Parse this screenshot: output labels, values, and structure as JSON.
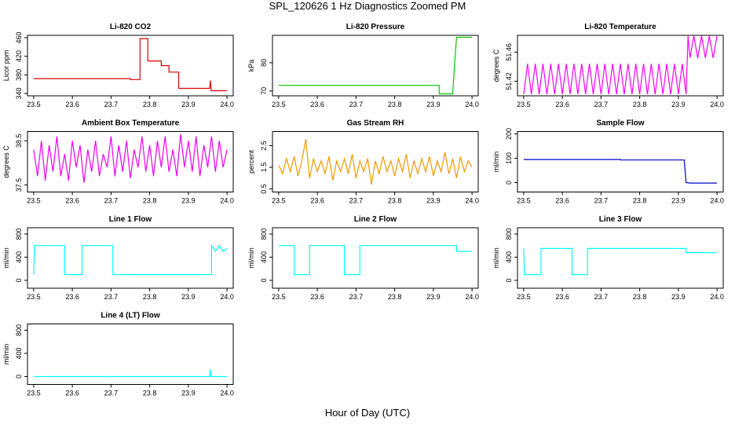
{
  "title": "SPL_120626  1 Hz Diagnostics Zoomed PM",
  "xlabel": "Hour of Day (UTC)",
  "chart_data": [
    {
      "type": "line",
      "title": "Li-820 CO2",
      "ylabel": "Licor ppm",
      "color": "#dd0000",
      "x": [
        23.5,
        23.75,
        23.75,
        23.775,
        23.775,
        23.795,
        23.795,
        23.83,
        23.83,
        23.85,
        23.85,
        23.875,
        23.875,
        23.955,
        23.957,
        23.959,
        23.96,
        24.0
      ],
      "values": [
        372,
        372,
        370,
        370,
        458,
        458,
        410,
        410,
        400,
        400,
        386,
        386,
        351,
        351,
        368,
        346,
        346,
        346
      ],
      "xlim": [
        23.484,
        24.016
      ],
      "ylim": [
        335,
        465
      ],
      "xticks": [
        23.5,
        23.6,
        23.7,
        23.8,
        23.9,
        {
          "value": 24,
          "label": "24.0"
        }
      ],
      "yticks": [
        340,
        380,
        420,
        460
      ]
    },
    {
      "type": "line",
      "title": "Li-820 Pressure",
      "ylabel": "kPa",
      "color": "#00cc00",
      "x": [
        23.5,
        23.915,
        23.915,
        23.95,
        23.955,
        23.96,
        24.0
      ],
      "values": [
        72,
        72,
        69,
        69,
        80,
        89,
        89
      ],
      "xlim": [
        23.484,
        24.016
      ],
      "ylim": [
        68.3,
        89.7
      ],
      "xticks": [
        23.5,
        23.6,
        23.7,
        23.8,
        23.9,
        {
          "value": 24,
          "label": "24.0"
        }
      ],
      "yticks": [
        70,
        80
      ]
    },
    {
      "type": "line",
      "title": "Li-820 Temperature",
      "ylabel": "degrees C",
      "color": "#ff00ff",
      "x": [
        23.5,
        23.51,
        23.52,
        23.53,
        23.54,
        23.55,
        23.56,
        23.57,
        23.58,
        23.59,
        23.6,
        23.61,
        23.62,
        23.63,
        23.64,
        23.65,
        23.66,
        23.67,
        23.68,
        23.69,
        23.7,
        23.71,
        23.72,
        23.73,
        23.74,
        23.75,
        23.76,
        23.77,
        23.78,
        23.79,
        23.8,
        23.81,
        23.82,
        23.83,
        23.84,
        23.85,
        23.86,
        23.87,
        23.88,
        23.89,
        23.9,
        23.91,
        23.92,
        23.925,
        23.93,
        23.94,
        23.95,
        23.96,
        23.97,
        23.98,
        23.99,
        24.0
      ],
      "values": [
        51.402,
        51.444,
        51.402,
        51.444,
        51.402,
        51.444,
        51.402,
        51.444,
        51.402,
        51.444,
        51.402,
        51.444,
        51.402,
        51.444,
        51.402,
        51.444,
        51.402,
        51.444,
        51.402,
        51.444,
        51.402,
        51.444,
        51.402,
        51.444,
        51.402,
        51.444,
        51.402,
        51.444,
        51.402,
        51.444,
        51.402,
        51.444,
        51.402,
        51.444,
        51.402,
        51.444,
        51.402,
        51.444,
        51.402,
        51.444,
        51.402,
        51.444,
        51.402,
        51.482,
        51.452,
        51.482,
        51.452,
        51.482,
        51.452,
        51.482,
        51.452,
        51.482
      ],
      "xlim": [
        23.484,
        24.016
      ],
      "ylim": [
        51.4,
        51.483
      ],
      "xticks": [
        23.5,
        23.6,
        23.7,
        23.8,
        23.9,
        {
          "value": 24,
          "label": "24.0"
        }
      ],
      "yticks": [
        51.42,
        51.46
      ]
    },
    {
      "type": "line",
      "title": "Ambient Box Temperature",
      "ylabel": "degrees C",
      "color": "#ee00ee",
      "x": [
        23.5,
        23.51,
        23.52,
        23.53,
        23.54,
        23.55,
        23.56,
        23.57,
        23.58,
        23.59,
        23.6,
        23.61,
        23.62,
        23.63,
        23.64,
        23.65,
        23.66,
        23.67,
        23.68,
        23.69,
        23.7,
        23.71,
        23.72,
        23.73,
        23.74,
        23.75,
        23.76,
        23.77,
        23.78,
        23.79,
        23.8,
        23.81,
        23.82,
        23.83,
        23.84,
        23.85,
        23.86,
        23.87,
        23.88,
        23.89,
        23.9,
        23.91,
        23.92,
        23.93,
        23.94,
        23.95,
        23.96,
        23.97,
        23.98,
        23.99,
        24.0
      ],
      "values": [
        38.3,
        37.7,
        38.5,
        37.6,
        38.4,
        37.8,
        38.6,
        37.7,
        38.2,
        37.6,
        38.5,
        37.9,
        38.4,
        37.55,
        38.3,
        37.8,
        38.5,
        37.7,
        38.2,
        37.9,
        38.6,
        37.7,
        38.4,
        37.8,
        38.5,
        37.65,
        38.3,
        37.9,
        38.6,
        37.8,
        38.4,
        37.7,
        38.5,
        37.9,
        38.6,
        37.8,
        38.3,
        37.7,
        38.65,
        37.9,
        38.5,
        37.8,
        38.6,
        37.7,
        38.4,
        37.9,
        38.6,
        37.8,
        38.5,
        37.9,
        38.3
      ],
      "xlim": [
        23.484,
        24.016
      ],
      "ylim": [
        37.34,
        38.71
      ],
      "xticks": [
        23.5,
        23.6,
        23.7,
        23.8,
        23.9,
        {
          "value": 24,
          "label": "24.0"
        }
      ],
      "yticks": [
        37.5,
        38.5
      ]
    },
    {
      "type": "line",
      "title": "Gas Stream RH",
      "ylabel": "percent",
      "color": "#ee9900",
      "x": [
        23.5,
        23.51,
        23.52,
        23.53,
        23.54,
        23.55,
        23.56,
        23.57,
        23.58,
        23.59,
        23.6,
        23.61,
        23.62,
        23.63,
        23.64,
        23.65,
        23.66,
        23.67,
        23.68,
        23.69,
        23.7,
        23.71,
        23.72,
        23.73,
        23.74,
        23.75,
        23.76,
        23.77,
        23.78,
        23.79,
        23.8,
        23.81,
        23.82,
        23.83,
        23.84,
        23.85,
        23.86,
        23.87,
        23.88,
        23.89,
        23.9,
        23.91,
        23.92,
        23.93,
        23.94,
        23.95,
        23.96,
        23.97,
        23.98,
        23.99,
        24.0
      ],
      "values": [
        1.6,
        1.2,
        1.9,
        1.3,
        2.0,
        1.1,
        1.8,
        2.8,
        1.0,
        1.9,
        1.3,
        1.8,
        1.2,
        2.0,
        0.9,
        1.8,
        1.3,
        1.9,
        1.2,
        2.1,
        1.0,
        1.8,
        1.3,
        1.9,
        0.7,
        1.8,
        1.2,
        2.0,
        1.3,
        1.8,
        1.1,
        1.9,
        1.3,
        2.1,
        1.0,
        1.8,
        1.2,
        1.9,
        1.3,
        2.0,
        1.1,
        1.8,
        1.3,
        2.2,
        1.2,
        1.9,
        1.0,
        2.0,
        1.3,
        1.8,
        1.5
      ],
      "xlim": [
        23.484,
        24.016
      ],
      "ylim": [
        0.355,
        3.155
      ],
      "xticks": [
        23.5,
        23.6,
        23.7,
        23.8,
        23.9,
        {
          "value": 24,
          "label": "24.0"
        }
      ],
      "yticks": [
        0.5,
        1.5,
        2.5
      ]
    },
    {
      "type": "line",
      "title": "Sample Flow",
      "ylabel": "ml/min",
      "color": "#0000cc",
      "x": [
        23.5,
        23.75,
        23.75,
        23.915,
        23.92,
        23.93,
        24.0
      ],
      "values": [
        95,
        95,
        93,
        93,
        0,
        -2,
        -2
      ],
      "xlim": [
        23.484,
        24.016
      ],
      "ylim": [
        -38.7,
        209.7
      ],
      "xticks": [
        23.5,
        23.6,
        23.7,
        23.8,
        23.9,
        {
          "value": 24,
          "label": "24.0"
        }
      ],
      "yticks": [
        0,
        100,
        200
      ]
    },
    {
      "type": "line",
      "title": "Line 1 Flow",
      "ylabel": "ml/min",
      "color": "#00ffff",
      "x": [
        23.5,
        23.502,
        23.58,
        23.58,
        23.625,
        23.625,
        23.705,
        23.705,
        23.96,
        23.96,
        23.97,
        23.98,
        23.99,
        24.0
      ],
      "values": [
        100,
        600,
        600,
        100,
        100,
        600,
        600,
        100,
        100,
        600,
        500,
        600,
        500,
        550
      ],
      "xlim": [
        23.484,
        24.016
      ],
      "ylim": [
        -136,
        908
      ],
      "xticks": [
        23.5,
        23.6,
        23.7,
        23.8,
        23.9,
        {
          "value": 24,
          "label": "24.0"
        }
      ],
      "yticks": [
        0,
        400,
        800
      ]
    },
    {
      "type": "line",
      "title": "Line 2 Flow",
      "ylabel": "ml/min",
      "color": "#00ffff",
      "x": [
        23.5,
        23.54,
        23.54,
        23.58,
        23.58,
        23.67,
        23.67,
        23.71,
        23.71,
        23.96,
        23.96,
        24.0
      ],
      "values": [
        600,
        600,
        100,
        100,
        600,
        600,
        100,
        100,
        600,
        600,
        500,
        500
      ],
      "xlim": [
        23.484,
        24.016
      ],
      "ylim": [
        -136,
        908
      ],
      "xticks": [
        23.5,
        23.6,
        23.7,
        23.8,
        23.9,
        {
          "value": 24,
          "label": "24.0"
        }
      ],
      "yticks": [
        0,
        400,
        800
      ]
    },
    {
      "type": "line",
      "title": "Line 3 Flow",
      "ylabel": "ml/min",
      "color": "#00ffff",
      "x": [
        23.5,
        23.502,
        23.545,
        23.545,
        23.625,
        23.625,
        23.665,
        23.665,
        23.92,
        23.92,
        24.0
      ],
      "values": [
        550,
        100,
        100,
        550,
        550,
        100,
        100,
        550,
        550,
        480,
        480
      ],
      "xlim": [
        23.484,
        24.016
      ],
      "ylim": [
        -136,
        908
      ],
      "xticks": [
        23.5,
        23.6,
        23.7,
        23.8,
        23.9,
        {
          "value": 24,
          "label": "24.0"
        }
      ],
      "yticks": [
        0,
        400,
        800
      ]
    },
    {
      "type": "line",
      "title": "Line 4 (LT) Flow",
      "ylabel": "ml/min",
      "color": "#00ffff",
      "x": [
        23.5,
        23.955,
        23.957,
        23.959,
        24.0
      ],
      "values": [
        0,
        0,
        130,
        0,
        0
      ],
      "xlim": [
        23.484,
        24.016
      ],
      "ylim": [
        -136,
        908
      ],
      "xticks": [
        23.5,
        23.6,
        23.7,
        23.8,
        23.9,
        {
          "value": 24,
          "label": "24.0"
        }
      ],
      "yticks": [
        0,
        400,
        800
      ]
    }
  ]
}
